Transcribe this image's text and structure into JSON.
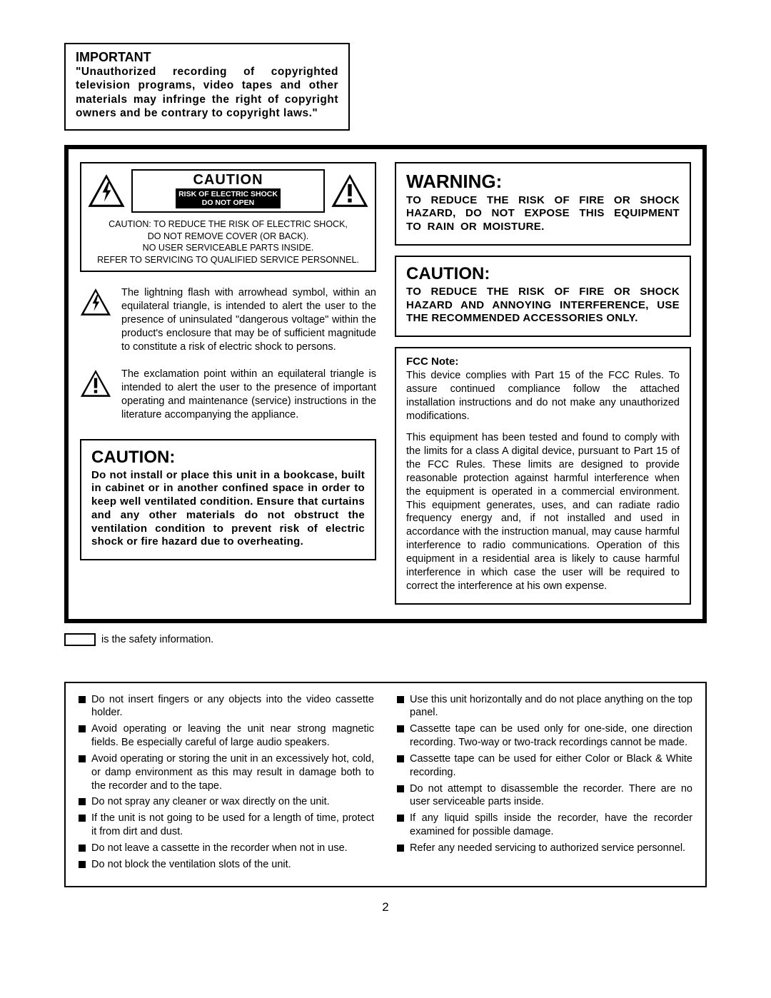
{
  "important": {
    "title": "IMPORTANT",
    "body": "\"Unauthorized recording of copyrighted television programs, video tapes and other materials may infringe the right of copyright owners and be contrary to copyright laws.\""
  },
  "caution_plate": {
    "title": "CAUTION",
    "sub1": "RISK OF ELECTRIC SHOCK",
    "sub2": "DO NOT OPEN",
    "text_l1": "CAUTION: TO REDUCE THE RISK OF ELECTRIC SHOCK,",
    "text_l2": "DO NOT REMOVE COVER (OR BACK).",
    "text_l3": "NO USER SERVICEABLE PARTS INSIDE.",
    "text_l4": "REFER TO SERVICING TO QUALIFIED SERVICE PERSONNEL."
  },
  "symbols": {
    "lightning": "The lightning flash with arrowhead symbol, within an equilateral triangle, is intended to alert the user to the presence of uninsulated \"dangerous voltage\" within the product's enclosure that may be of sufficient magnitude to constitute a risk of electric shock to persons.",
    "exclaim": "The exclamation point within an equilateral triangle is intended to alert the user to the presence of important operating and maintenance (service) instructions in the literature accompanying the appliance."
  },
  "caution_install": {
    "title": "CAUTION:",
    "body": "Do not install or place this unit in a bookcase, built in cabinet or in another confined space in order to keep well ventilated condition. Ensure that curtains and any other materials do not obstruct the ventilation condition to prevent risk of electric shock or fire hazard due to overheating."
  },
  "warning": {
    "title": "WARNING:",
    "body": "TO REDUCE THE RISK OF FIRE OR SHOCK HAZARD, DO NOT EXPOSE THIS EQUIPMENT TO RAIN OR MOISTURE."
  },
  "caution_acc": {
    "title": "CAUTION:",
    "body": "TO REDUCE THE RISK OF FIRE OR SHOCK HAZARD AND ANNOYING INTERFERENCE, USE THE RECOMMENDED ACCESSORIES ONLY."
  },
  "fcc": {
    "title": "FCC Note:",
    "p1": "This device complies with Part 15 of the FCC Rules. To assure continued compliance follow the attached installation instructions and do not make any unauthorized modifications.",
    "p2": "This equipment has been tested and found to comply with the limits for a class A digital device, pursuant to Part 15 of the FCC Rules. These limits are designed to provide reasonable protection against harmful interference when the equipment is operated in a commercial environment. This equipment generates, uses, and can radiate radio frequency energy and, if not installed and used in accordance with the instruction manual, may cause harmful interference to radio communications. Operation of this equipment in a residential area is likely to cause harmful interference in which case the user will be required to correct the interference at his own expense."
  },
  "safety_note": "is the safety information.",
  "tips_left": [
    "Do not insert fingers or any objects into the video cassette holder.",
    "Avoid operating or leaving the unit near strong magnetic fields. Be especially careful of large audio speakers.",
    "Avoid operating or storing the unit in an excessively hot, cold, or damp environment as this may result in damage both to the recorder and to the tape.",
    "Do not spray any cleaner or wax directly on the unit.",
    "If the unit is not going to be used for a length of time, protect it from dirt and dust.",
    "Do not leave a cassette in the recorder when not in use.",
    "Do not block the ventilation slots of the unit."
  ],
  "tips_right": [
    "Use this unit horizontally and do not place anything on the top panel.",
    "Cassette tape can be used only for one-side, one direction recording. Two-way or two-track recordings cannot be made.",
    "Cassette tape can be used for either Color or Black & White recording.",
    "Do not attempt to disassemble the recorder. There are no user serviceable parts inside.",
    "If any liquid spills inside the recorder, have the recorder examined for possible damage.",
    "Refer any needed servicing to authorized service personnel."
  ],
  "page_number": "2",
  "colors": {
    "black": "#000000",
    "white": "#ffffff"
  }
}
